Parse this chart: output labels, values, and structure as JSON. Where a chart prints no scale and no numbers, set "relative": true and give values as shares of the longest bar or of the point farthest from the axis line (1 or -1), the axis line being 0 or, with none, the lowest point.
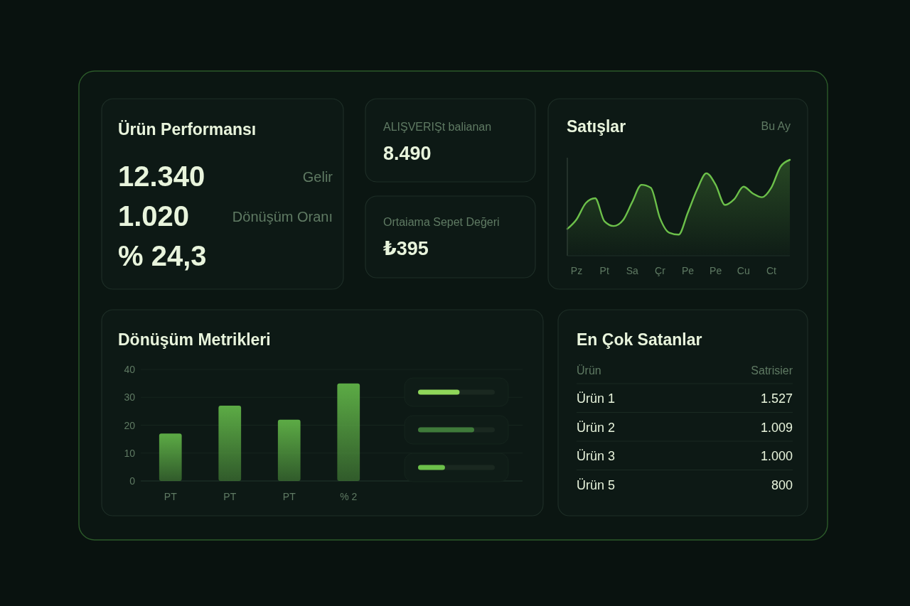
{
  "chart_data": [
    {
      "type": "other",
      "title": "Ürün Performansı",
      "annotations": [
        "12.340",
        "Gelir",
        "1.020",
        "Dönüşüm Oranı",
        "% 24,3"
      ]
    },
    {
      "type": "other",
      "title": "ALIŞVERIŞt balianan",
      "annotations": [
        "8.490"
      ]
    },
    {
      "type": "other",
      "title": "Ortaiama Sepet Değeri",
      "annotations": [
        "₺395"
      ]
    },
    {
      "type": "area",
      "title": "Satışlar",
      "subtitle": "Bu Ay",
      "relative": true,
      "color": "#6cc04a",
      "categories": [
        null,
        "Pz",
        null,
        null,
        "Pt",
        null,
        null,
        "Sa",
        null,
        null,
        "Çr",
        null,
        null,
        "Pe",
        null,
        null,
        "Pe",
        null,
        null,
        "Cu",
        null,
        null,
        "Ct",
        null,
        null
      ],
      "values": [
        0.28,
        0.38,
        0.55,
        0.6,
        0.36,
        0.31,
        0.37,
        0.56,
        0.74,
        0.71,
        0.39,
        0.24,
        0.22,
        0.45,
        0.69,
        0.86,
        0.74,
        0.53,
        0.59,
        0.72,
        0.65,
        0.61,
        0.71,
        0.93,
        1.0
      ]
    },
    {
      "type": "bar",
      "title": "Dönüşüm Metrikleri",
      "categories": [
        "PT",
        "PT",
        "PT",
        "% 2"
      ],
      "values": [
        17,
        27,
        22,
        35
      ],
      "color": "#5cab45",
      "ylim": [
        0,
        40
      ],
      "yticks": [
        0,
        10,
        20,
        30,
        40
      ],
      "grid": "y"
    },
    {
      "type": "bar",
      "orientation": "horizontal",
      "relative": true,
      "categories": [
        null,
        null,
        null
      ],
      "values": [
        0.74,
        1,
        0.48
      ],
      "colors": [
        "#8fd65a",
        "#3f7a3a",
        "#6cc04a"
      ]
    },
    {
      "type": "other",
      "title": "En Çok Satanlar",
      "annotations": [
        "Ürün",
        "Satrisier"
      ],
      "categories": [
        "Ürün 1",
        "Ürün 2",
        "Ürün 3",
        "Ürün 5"
      ],
      "value_labels": [
        "1.527",
        "1.009",
        "1.000",
        "800"
      ]
    }
  ]
}
